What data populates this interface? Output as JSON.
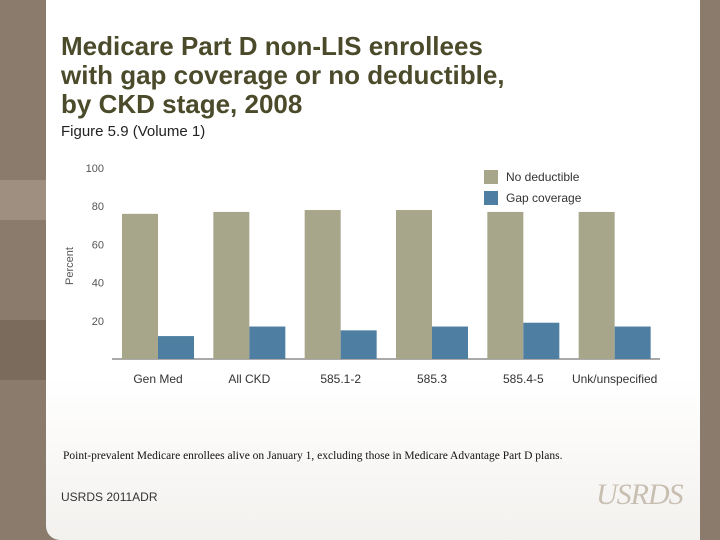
{
  "slide": {
    "title_lines": [
      "Medicare Part D non-LIS enrollees",
      "with gap coverage or no deductible,",
      "by CKD stage, 2008"
    ],
    "subtitle": "Figure 5.9 (Volume 1)",
    "footnote": "Point-prevalent Medicare enrollees alive on January 1, excluding those in Medicare Advantage Part D plans.",
    "source": "USRDS 2011ADR",
    "logo_text": "USRDS"
  },
  "chart_data": {
    "type": "bar",
    "title": "Medicare Part D non-LIS enrollees with gap coverage or no deductible, by CKD stage, 2008",
    "categories": [
      "Gen Med",
      "All CKD",
      "585.1-2",
      "585.3",
      "585.4-5",
      "Unk/unspecified"
    ],
    "series": [
      {
        "name": "No deductible",
        "color": "#a8a68a",
        "values": [
          76,
          77,
          78,
          78,
          77,
          77
        ]
      },
      {
        "name": "Gap coverage",
        "color": "#4f7ea3",
        "values": [
          12,
          17,
          15,
          17,
          19,
          17
        ]
      }
    ],
    "xlabel": "",
    "ylabel": "Percent",
    "ylim": [
      0,
      100
    ],
    "yticks": [
      20,
      40,
      60,
      80,
      100
    ],
    "legend_position": "top-right",
    "grid": false
  }
}
